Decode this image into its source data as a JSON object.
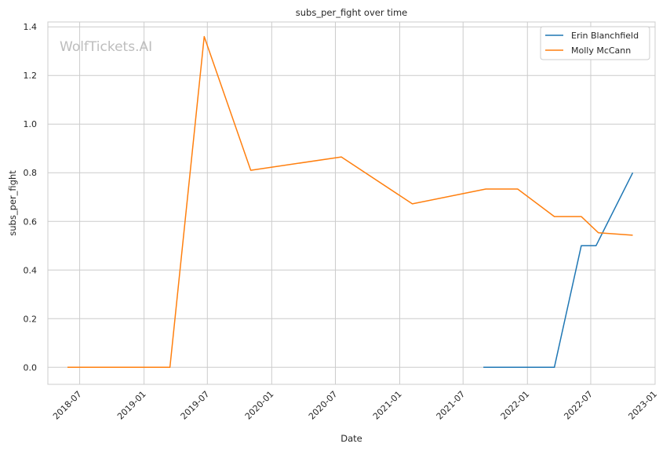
{
  "chart_data": {
    "type": "line",
    "title": "subs_per_fight over time",
    "xlabel": "Date",
    "ylabel": "subs_per_fight",
    "watermark": "WolfTickets.AI",
    "grid": true,
    "legend_position": "top-right",
    "xlim": [
      "2018-04-01",
      "2023-01-01"
    ],
    "ylim": [
      -0.07,
      1.42
    ],
    "x_ticks": [
      "2018-07",
      "2019-01",
      "2019-07",
      "2020-01",
      "2020-07",
      "2021-01",
      "2021-07",
      "2022-01",
      "2022-07",
      "2023-01"
    ],
    "y_ticks": [
      "0.0",
      "0.2",
      "0.4",
      "0.6",
      "0.8",
      "1.0",
      "1.2",
      "1.4"
    ],
    "series": [
      {
        "name": "Erin Blanchfield",
        "color": "#1f77b4",
        "x": [
          "2021-08-28",
          "2021-11-20",
          "2022-03-19",
          "2022-06-04",
          "2022-07-16",
          "2022-10-29"
        ],
        "y": [
          0.0,
          0.0,
          0.0,
          0.5,
          0.5,
          0.8
        ]
      },
      {
        "name": "Molly McCann",
        "color": "#ff7f0e",
        "x": [
          "2018-05-27",
          "2018-11-17",
          "2019-03-16",
          "2019-06-22",
          "2019-11-02",
          "2020-07-18",
          "2021-02-06",
          "2021-09-04",
          "2021-12-04",
          "2022-03-19",
          "2022-06-04",
          "2022-07-23",
          "2022-10-29"
        ],
        "y": [
          0.0,
          0.0,
          0.0,
          1.36,
          0.81,
          0.865,
          0.672,
          0.733,
          0.733,
          0.62,
          0.62,
          0.553,
          0.543
        ]
      }
    ]
  }
}
